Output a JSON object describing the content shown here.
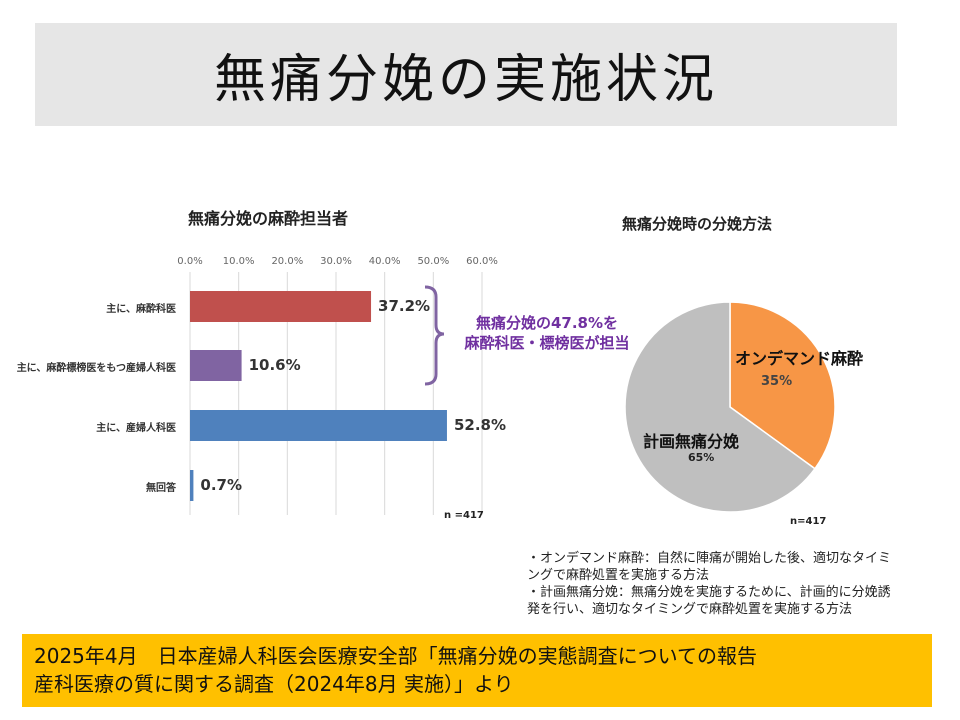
{
  "title": "無痛分娩の実施状況",
  "chart_data": [
    {
      "type": "bar",
      "orientation": "horizontal",
      "title": "無痛分娩の麻酔担当者",
      "categories": [
        "主に、麻酔科医",
        "主に、麻酔標榜医をもつ産婦人科医",
        "主に、産婦人科医",
        "無回答"
      ],
      "values": [
        37.2,
        10.6,
        52.8,
        0.7
      ],
      "value_labels": [
        "37.2%",
        "10.6%",
        "52.8%",
        "0.7%"
      ],
      "colors": [
        "#c0504d",
        "#8064a2",
        "#4f81bd",
        "#4f81bd"
      ],
      "xlim": [
        0,
        60
      ],
      "ticks": [
        "0.0%",
        "10.0%",
        "20.0%",
        "30.0%",
        "40.0%",
        "50.0%",
        "60.0%"
      ],
      "n_label": "n =417",
      "annotation": {
        "line1": "無痛分娩の47.8%を",
        "line2": "麻酔科医・標榜医が担当",
        "color": "#7030a0"
      }
    },
    {
      "type": "pie",
      "title": "無痛分娩時の分娩方法",
      "slices": [
        {
          "label": "オンデマンド麻酔",
          "value": 35,
          "pct": "35%",
          "color": "#f79646"
        },
        {
          "label": "計画無痛分娩",
          "value": 65,
          "pct": "65%",
          "color": "#bfbfbf"
        }
      ],
      "n_label": "n=417"
    }
  ],
  "notes": [
    "・オンデマンド麻酔：自然に陣痛が開始した後、適切なタイミ",
    "ングで麻酔処置を実施する方法",
    "・計画無痛分娩：無痛分娩を実施するために、計画的に分娩誘",
    "発を行い、適切なタイミングで麻酔処置を実施する方法"
  ],
  "footer": {
    "line1": "2025年4月　日本産婦人科医会医療安全部「無痛分娩の実態調査についての報告",
    "line2": "産科医療の質に関する調査（2024年8月 実施）」より"
  }
}
